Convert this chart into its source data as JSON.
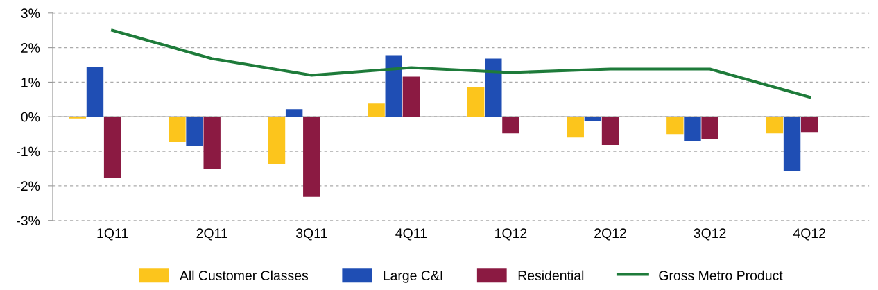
{
  "chart_data": {
    "type": "bar",
    "categories": [
      "1Q11",
      "2Q11",
      "3Q11",
      "4Q11",
      "1Q12",
      "2Q12",
      "3Q12",
      "4Q12"
    ],
    "series": [
      {
        "name": "All Customer Classes",
        "color": "#fcc51c",
        "values": [
          -0.05,
          -0.74,
          -1.38,
          0.38,
          0.86,
          -0.6,
          -0.5,
          -0.48
        ]
      },
      {
        "name": "Large C&I",
        "color": "#1f4eb4",
        "values": [
          1.44,
          -0.86,
          0.22,
          1.78,
          1.68,
          -0.12,
          -0.7,
          -1.56
        ]
      },
      {
        "name": "Residential",
        "color": "#8b1a42",
        "values": [
          -1.78,
          -1.52,
          -2.32,
          1.16,
          -0.48,
          -0.82,
          -0.64,
          -0.44
        ]
      },
      {
        "name": "Gross Metro Product",
        "type": "line",
        "color": "#1e7b3a",
        "values": [
          2.5,
          1.68,
          1.2,
          1.42,
          1.28,
          1.38,
          1.38,
          0.57
        ]
      }
    ],
    "ylim": [
      -3,
      3
    ],
    "yticks": [
      {
        "value": -3,
        "label": "-3%"
      },
      {
        "value": -2,
        "label": "-2%"
      },
      {
        "value": -1,
        "label": "-1%"
      },
      {
        "value": 0,
        "label": "0%"
      },
      {
        "value": 1,
        "label": "1%"
      },
      {
        "value": 2,
        "label": "2%"
      },
      {
        "value": 3,
        "label": "3%"
      }
    ],
    "grid": "y",
    "legend": "bottom"
  }
}
